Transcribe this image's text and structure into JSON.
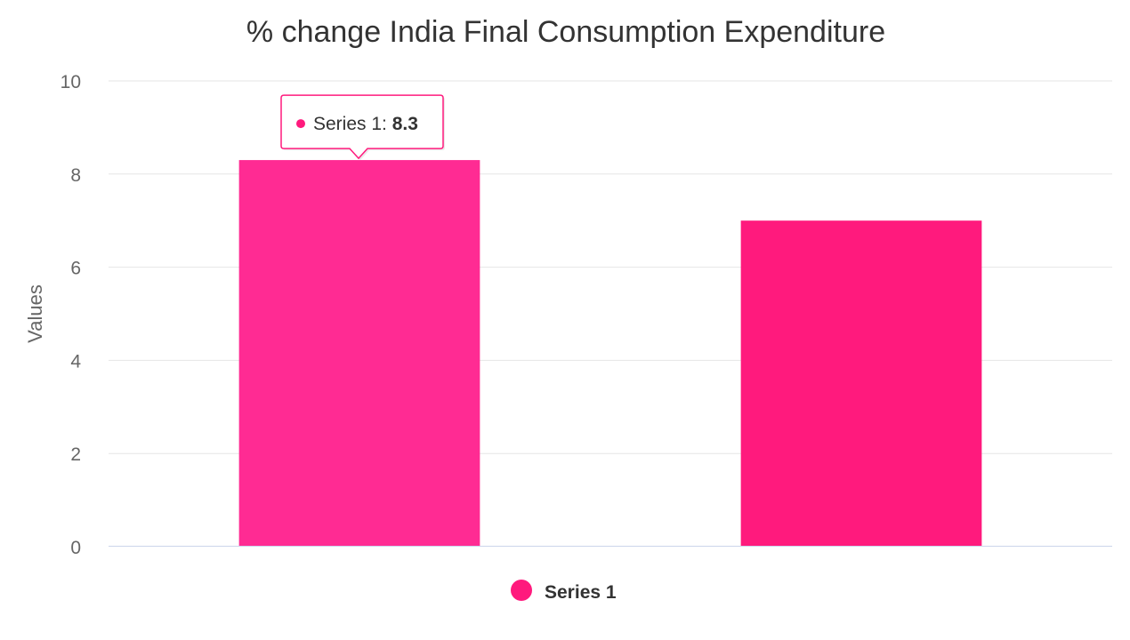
{
  "chart_data": {
    "type": "bar",
    "title": "% change India Final Consumption Expenditure",
    "xlabel": "",
    "ylabel": "Values",
    "categories": [
      "",
      ""
    ],
    "series": [
      {
        "name": "Series 1",
        "values": [
          8.3,
          7.0
        ],
        "color": "#ff1a7d",
        "hover_color": "#ff2b93"
      }
    ],
    "ylim": [
      0,
      10
    ],
    "yticks": [
      0,
      2,
      4,
      6,
      8,
      10
    ],
    "yticks_text": [
      "0",
      "2",
      "4",
      "6",
      "8",
      "10"
    ],
    "grid": true,
    "legend": {
      "position": "bottom-center",
      "entries": [
        "Series 1"
      ]
    },
    "tooltip": {
      "series_label": "Series 1: ",
      "value_text": "8.3",
      "category_index": 0,
      "border_color": "#ff1a7d"
    }
  },
  "colors": {
    "grid": "#e6e6e6",
    "axis_line": "#ccd6eb",
    "background": "#ffffff"
  }
}
